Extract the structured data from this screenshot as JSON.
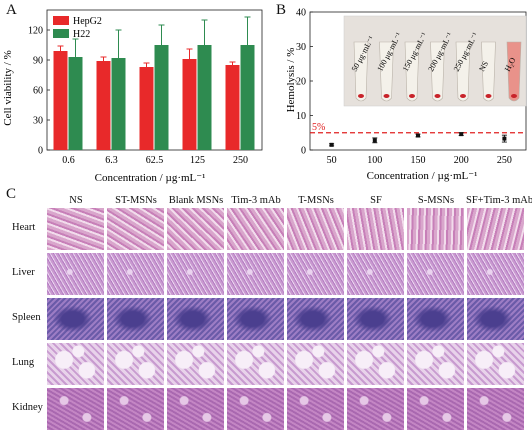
{
  "panels": {
    "a": "A",
    "b": "B",
    "c": "C"
  },
  "chart_data": [
    {
      "type": "bar",
      "categories": [
        "0.6",
        "6.3",
        "62.5",
        "125",
        "250"
      ],
      "series": [
        {
          "name": "HepG2",
          "values": [
            99,
            89,
            83,
            91,
            85
          ],
          "errors": [
            5,
            4,
            4,
            10,
            3
          ],
          "color": "#e8292a"
        },
        {
          "name": "H22",
          "values": [
            93,
            92,
            105,
            105,
            105
          ],
          "errors": [
            18,
            28,
            20,
            25,
            28
          ],
          "color": "#2e8b50"
        }
      ],
      "xlabel": "Concentration / µg·mL⁻¹",
      "ylabel": "Cell viability / %",
      "ylim": [
        0,
        140
      ],
      "yticks": [
        "0",
        "30",
        "60",
        "90",
        "120"
      ],
      "legend": "top-left"
    },
    {
      "type": "scatter",
      "x": [
        "50",
        "100",
        "150",
        "200",
        "250"
      ],
      "values": [
        1.5,
        2.8,
        4.2,
        4.6,
        3.3
      ],
      "errors": [
        0.3,
        0.7,
        0.4,
        0.4,
        1.0
      ],
      "threshold": {
        "value": 5,
        "label": "5%",
        "color": "#e02020"
      },
      "xlabel": "Concentration / µg·mL⁻¹",
      "ylabel": "Hemolysis / %",
      "ylim": [
        0,
        40
      ],
      "yticks": [
        "0",
        "10",
        "20",
        "30",
        "40"
      ],
      "inset_labels": [
        "50 μg·mL⁻¹",
        "100 μg·mL⁻¹",
        "150 μg·mL⁻¹",
        "200 μg·mL⁻¹",
        "250 μg·mL⁻¹",
        "NS",
        "H₂O"
      ]
    }
  ],
  "histology": {
    "columns": [
      "NS",
      "ST-MSNs",
      "Blank MSNs",
      "Tim-3 mAb",
      "T-MSNs",
      "SF",
      "S-MSNs",
      "SF+Tim-3 mAb"
    ],
    "rows": [
      "Heart",
      "Liver",
      "Spleen",
      "Lung",
      "Kidney"
    ]
  }
}
